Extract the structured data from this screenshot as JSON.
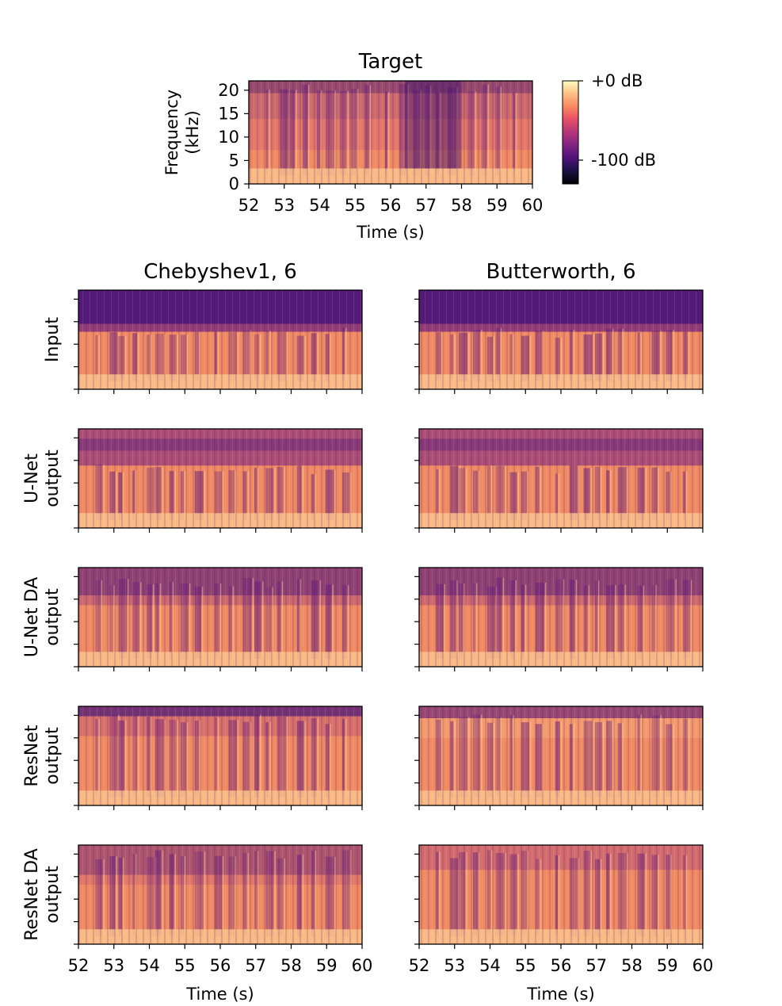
{
  "chart_data": {
    "type": "heatmap",
    "colormap": "magma",
    "colorbar": {
      "ticks": [
        {
          "label": "+0 dB",
          "value": 0
        },
        {
          "label": "-100 dB",
          "value": -100
        }
      ],
      "range": [
        -130,
        0
      ]
    },
    "target": {
      "title": "Target",
      "xlabel": "Time (s)",
      "ylabel_line1": "Frequency",
      "ylabel_line2": "(kHz)",
      "xticks": [
        "52",
        "53",
        "54",
        "55",
        "56",
        "57",
        "58",
        "59",
        "60"
      ],
      "yticks": [
        "0",
        "5",
        "10",
        "15",
        "20"
      ],
      "xlim": [
        52,
        60
      ],
      "ylim": [
        0,
        22
      ]
    },
    "columns": [
      {
        "title": "Chebyshev1, 6"
      },
      {
        "title": "Butterworth, 6"
      }
    ],
    "rows": [
      {
        "label_line1": "Input",
        "label_line2": ""
      },
      {
        "label_line1": "U-Net",
        "label_line2": "output"
      },
      {
        "label_line1": "U-Net DA",
        "label_line2": "output"
      },
      {
        "label_line1": "ResNet",
        "label_line2": "output"
      },
      {
        "label_line1": "ResNet DA",
        "label_line2": "output"
      }
    ],
    "bottom_xticks": [
      "52",
      "53",
      "54",
      "55",
      "56",
      "57",
      "58",
      "59",
      "60"
    ],
    "bottom_xlabel": "Time (s)"
  }
}
